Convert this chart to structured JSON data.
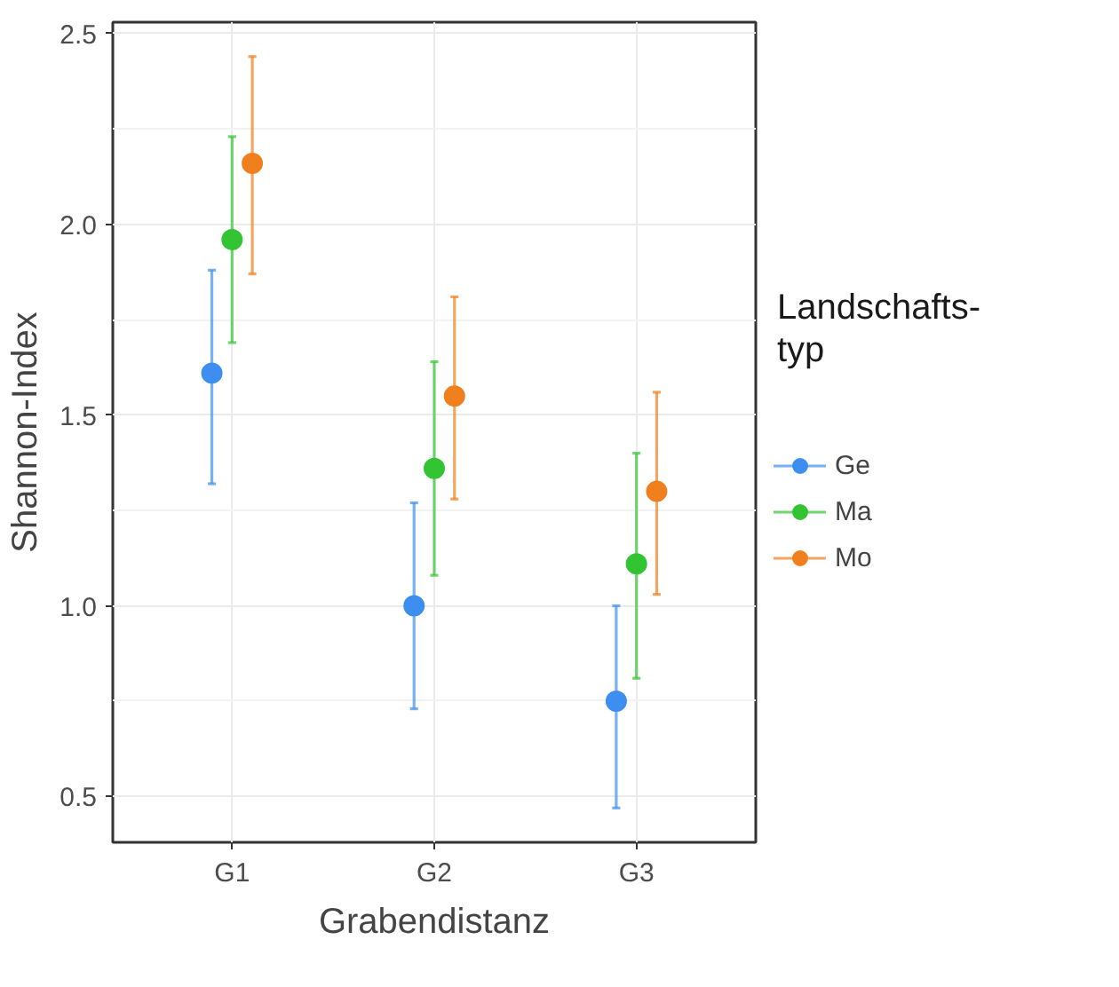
{
  "chart_data": {
    "type": "scatter",
    "xlabel": "Grabendistanz",
    "ylabel": "Shannon-Index",
    "legend_title": "Landschafts-typ",
    "categories": [
      "G1",
      "G2",
      "G3"
    ],
    "series": [
      {
        "name": "Ge",
        "color": "#3d8ef0",
        "values": [
          1.61,
          1.0,
          0.75
        ],
        "errors": [
          [
            1.32,
            1.88
          ],
          [
            0.73,
            1.27
          ],
          [
            0.47,
            1.0
          ]
        ]
      },
      {
        "name": "Ma",
        "color": "#33c433",
        "values": [
          1.96,
          1.36,
          1.11
        ],
        "errors": [
          [
            1.69,
            2.23
          ],
          [
            1.08,
            1.64
          ],
          [
            0.81,
            1.4
          ]
        ]
      },
      {
        "name": "Mo",
        "color": "#f07f1e",
        "values": [
          2.16,
          1.55,
          1.3
        ],
        "errors": [
          [
            1.87,
            2.44
          ],
          [
            1.28,
            1.81
          ],
          [
            1.03,
            1.56
          ]
        ]
      }
    ],
    "ylim": [
      0.38,
      2.53
    ],
    "yticks": [
      0.5,
      {
        "value": 1,
        "label": "1.0"
      },
      1.5,
      {
        "value": 2,
        "label": "2.0"
      },
      2.5
    ],
    "grid": true,
    "legend": "right",
    "marker": "circle"
  }
}
